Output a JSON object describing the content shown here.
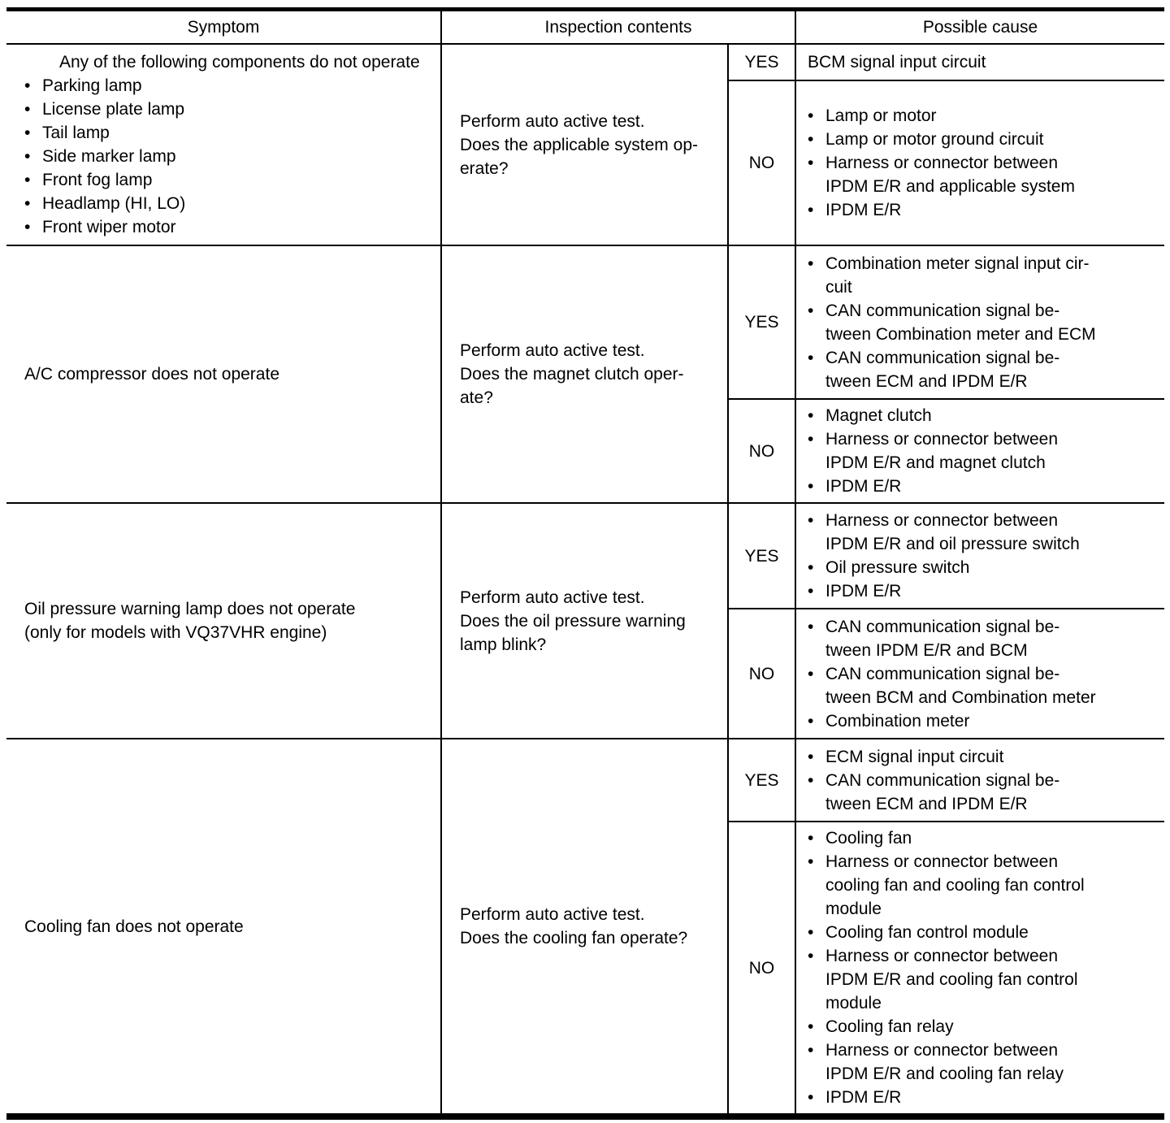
{
  "header": {
    "symptom": "Symptom",
    "inspection": "Inspection contents",
    "cause": "Possible cause"
  },
  "rows": [
    {
      "symptom_intro": "Any of the following components do not operate",
      "symptom_bullets": [
        "Parking lamp",
        "License plate lamp",
        "Tail lamp",
        "Side marker lamp",
        "Front fog lamp",
        "Headlamp (HI, LO)",
        "Front wiper motor"
      ],
      "inspection": "Perform auto active test.\nDoes the applicable system op-\nerate?",
      "yes_label": "YES",
      "no_label": "NO",
      "yes_causes": [
        "BCM signal input circuit"
      ],
      "no_causes": [
        "Lamp or motor",
        "Lamp or motor ground circuit",
        "Harness or connector between\nIPDM E/R and applicable system",
        "IPDM E/R"
      ]
    },
    {
      "symptom_intro": "A/C compressor does not operate",
      "symptom_bullets": [],
      "inspection": "Perform auto active test.\nDoes the magnet clutch oper-\nate?",
      "yes_label": "YES",
      "no_label": "NO",
      "yes_causes": [
        "Combination meter signal input cir-\ncuit",
        "CAN communication signal be-\ntween Combination meter and ECM",
        "CAN communication signal be-\ntween ECM and IPDM E/R"
      ],
      "no_causes": [
        "Magnet clutch",
        "Harness or connector between\nIPDM E/R and magnet clutch",
        "IPDM E/R"
      ]
    },
    {
      "symptom_intro": "Oil pressure warning lamp does not operate\n(only for models with VQ37VHR engine)",
      "symptom_bullets": [],
      "inspection": "Perform auto active test.\nDoes the oil pressure warning\nlamp blink?",
      "yes_label": "YES",
      "no_label": "NO",
      "yes_causes": [
        "Harness or connector between\nIPDM E/R and oil pressure switch",
        "Oil pressure switch",
        "IPDM E/R"
      ],
      "no_causes": [
        "CAN communication signal be-\ntween IPDM E/R and BCM",
        "CAN communication signal be-\ntween BCM and Combination meter",
        "Combination meter"
      ]
    },
    {
      "symptom_intro": "Cooling fan does not operate",
      "symptom_bullets": [],
      "inspection": "Perform auto active test.\nDoes the cooling fan operate?",
      "yes_label": "YES",
      "no_label": "NO",
      "yes_causes": [
        "ECM signal input circuit",
        "CAN communication signal be-\ntween ECM and IPDM E/R"
      ],
      "no_causes": [
        "Cooling fan",
        "Harness or connector between\ncooling fan and cooling fan control\nmodule",
        "Cooling fan control module",
        "Harness or connector between\nIPDM E/R and cooling fan control\nmodule",
        "Cooling fan relay",
        "Harness or connector between\nIPDM E/R and cooling fan relay",
        "IPDM E/R"
      ]
    }
  ]
}
